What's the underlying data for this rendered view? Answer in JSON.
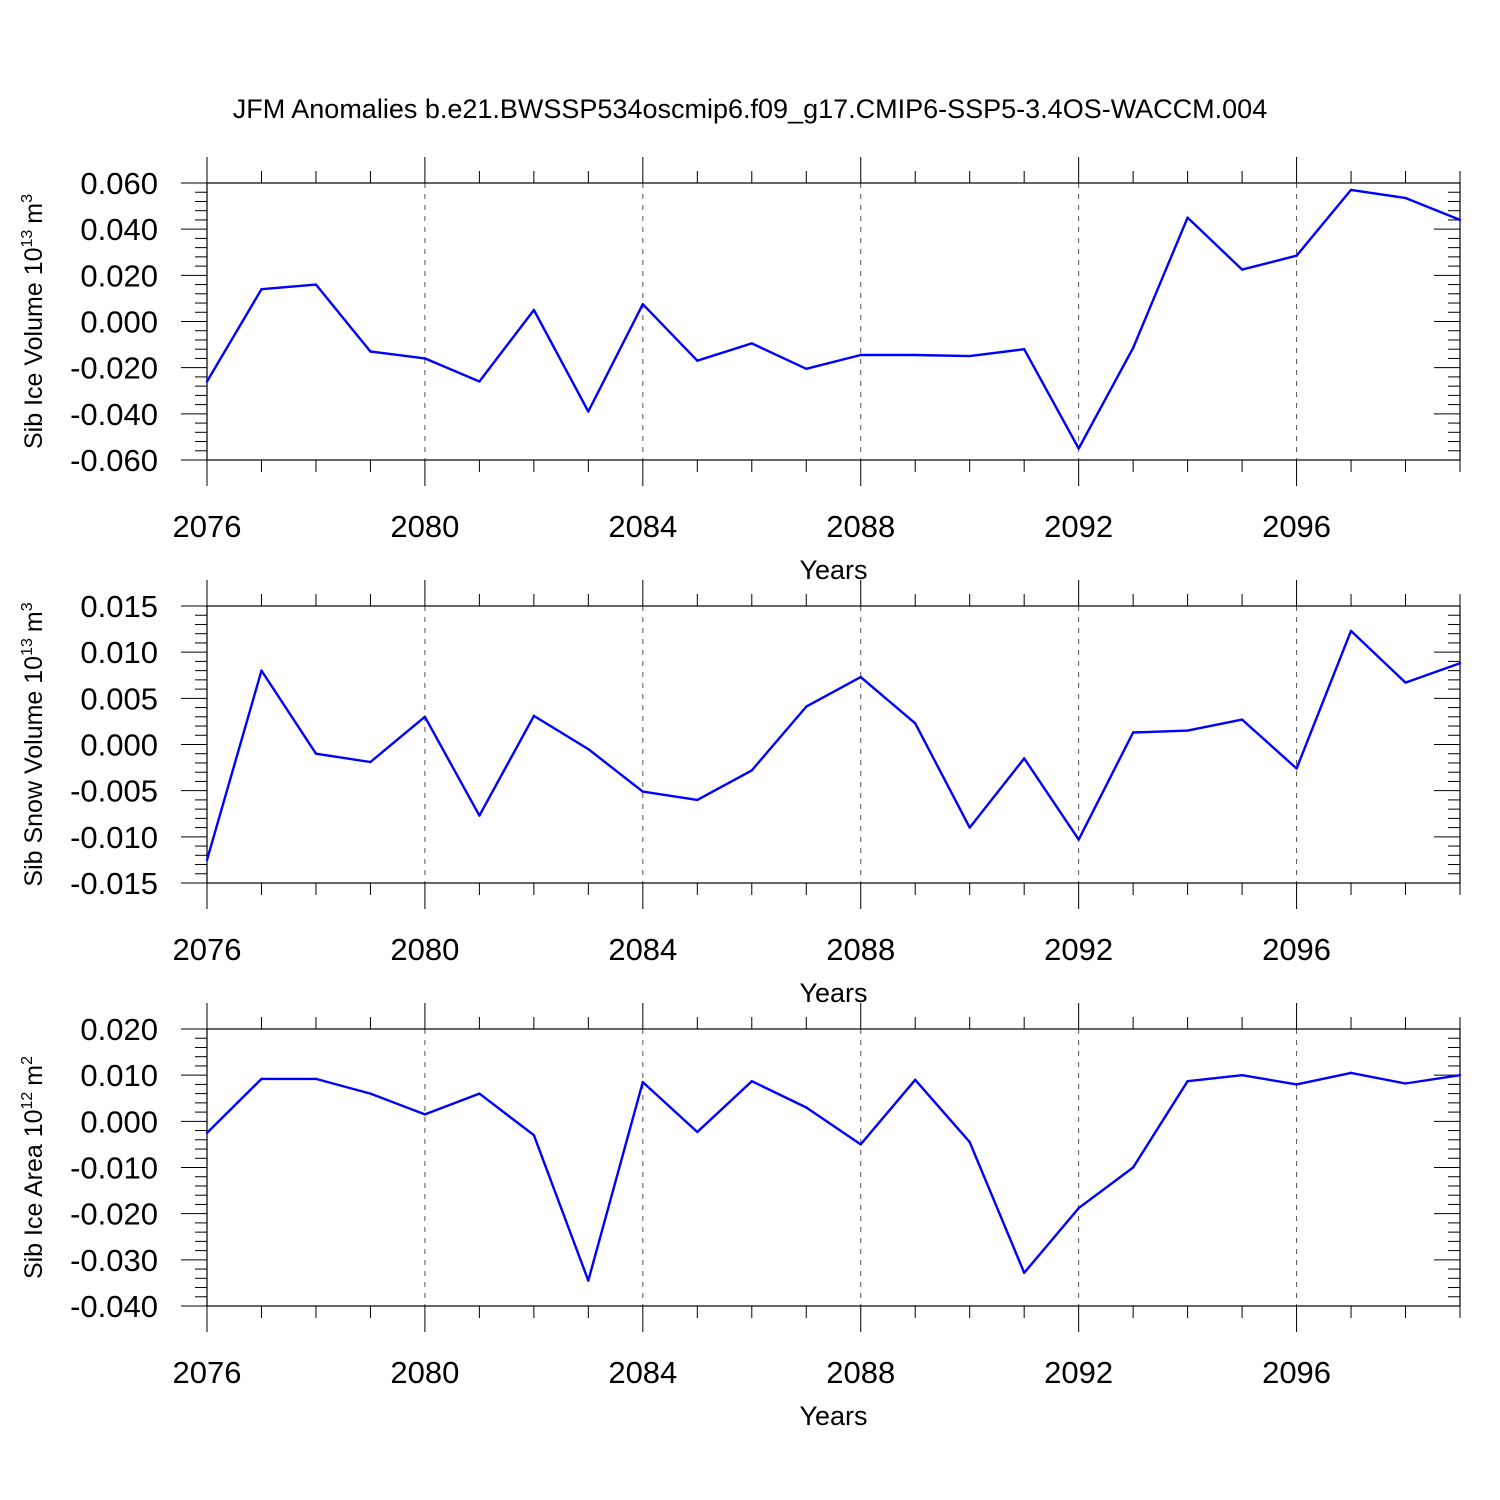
{
  "title": "JFM Anomalies b.e21.BWSSP534oscmip6.f09_g17.CMIP6-SSP5-3.4OS-WACCM.004",
  "line_color": "#0000ff",
  "chart_data": [
    {
      "type": "line",
      "ylabel_main": "Sib Ice Volume 10",
      "ylabel_exp": "13",
      "ylabel_unit": "m",
      "ylabel_unit_exp": "3",
      "xlabel": "Years",
      "xlim": [
        2076,
        2099
      ],
      "ylim": [
        -0.06,
        0.06
      ],
      "yticks": [
        -0.06,
        -0.04,
        -0.02,
        0.0,
        0.02,
        0.04,
        0.06
      ],
      "ytick_labels": [
        "-0.060",
        "-0.040",
        "-0.020",
        "0.000",
        "0.020",
        "0.040",
        "0.060"
      ],
      "xticks": [
        2076,
        2080,
        2084,
        2088,
        2092,
        2096
      ],
      "xtick_labels": [
        "2076",
        "2080",
        "2084",
        "2088",
        "2092",
        "2096"
      ],
      "x": [
        2076,
        2077,
        2078,
        2079,
        2080,
        2081,
        2082,
        2083,
        2084,
        2085,
        2086,
        2087,
        2088,
        2089,
        2090,
        2091,
        2092,
        2093,
        2094,
        2095,
        2096,
        2097,
        2098,
        2099
      ],
      "values": [
        -0.026,
        0.014,
        0.016,
        -0.013,
        -0.016,
        -0.026,
        0.005,
        -0.039,
        0.0075,
        -0.017,
        -0.0095,
        -0.0205,
        -0.0145,
        -0.0145,
        -0.015,
        -0.012,
        -0.055,
        -0.0115,
        0.045,
        0.0225,
        0.0285,
        0.057,
        0.0535,
        0.044
      ]
    },
    {
      "type": "line",
      "ylabel_main": "Sib Snow Volume 10",
      "ylabel_exp": "13",
      "ylabel_unit": "m",
      "ylabel_unit_exp": "3",
      "xlabel": "Years",
      "xlim": [
        2076,
        2099
      ],
      "ylim": [
        -0.015,
        0.015
      ],
      "yticks": [
        -0.015,
        -0.01,
        -0.005,
        0.0,
        0.005,
        0.01,
        0.015
      ],
      "ytick_labels": [
        "-0.015",
        "-0.010",
        "-0.005",
        "0.000",
        "0.005",
        "0.010",
        "0.015"
      ],
      "xticks": [
        2076,
        2080,
        2084,
        2088,
        2092,
        2096
      ],
      "xtick_labels": [
        "2076",
        "2080",
        "2084",
        "2088",
        "2092",
        "2096"
      ],
      "x": [
        2076,
        2077,
        2078,
        2079,
        2080,
        2081,
        2082,
        2083,
        2084,
        2085,
        2086,
        2087,
        2088,
        2089,
        2090,
        2091,
        2092,
        2093,
        2094,
        2095,
        2096,
        2097,
        2098,
        2099
      ],
      "values": [
        -0.0125,
        0.008,
        -0.001,
        -0.0019,
        0.003,
        -0.0077,
        0.0031,
        -0.0005,
        -0.0051,
        -0.006,
        -0.0028,
        0.0041,
        0.0073,
        0.0023,
        -0.009,
        -0.0015,
        -0.0103,
        0.0013,
        0.0015,
        0.0027,
        -0.0026,
        0.0123,
        0.0067,
        0.0088
      ]
    },
    {
      "type": "line",
      "ylabel_main": "Sib Ice Area 10",
      "ylabel_exp": "12",
      "ylabel_unit": "m",
      "ylabel_unit_exp": "2",
      "xlabel": "Years",
      "xlim": [
        2076,
        2099
      ],
      "ylim": [
        -0.04,
        0.02
      ],
      "yticks": [
        -0.04,
        -0.03,
        -0.02,
        -0.01,
        0.0,
        0.01,
        0.02
      ],
      "ytick_labels": [
        "-0.040",
        "-0.030",
        "-0.020",
        "-0.010",
        "0.000",
        "0.010",
        "0.020"
      ],
      "xticks": [
        2076,
        2080,
        2084,
        2088,
        2092,
        2096
      ],
      "xtick_labels": [
        "2076",
        "2080",
        "2084",
        "2088",
        "2092",
        "2096"
      ],
      "x": [
        2076,
        2077,
        2078,
        2079,
        2080,
        2081,
        2082,
        2083,
        2084,
        2085,
        2086,
        2087,
        2088,
        2089,
        2090,
        2091,
        2092,
        2093,
        2094,
        2095,
        2096,
        2097,
        2098,
        2099
      ],
      "values": [
        -0.0025,
        0.0092,
        0.0092,
        0.006,
        0.0015,
        0.006,
        -0.003,
        -0.0345,
        0.0085,
        -0.0023,
        0.0087,
        0.003,
        -0.005,
        0.009,
        -0.0045,
        -0.0328,
        -0.0188,
        -0.01,
        0.0087,
        0.01,
        0.008,
        0.0105,
        0.0082,
        0.01
      ]
    }
  ]
}
